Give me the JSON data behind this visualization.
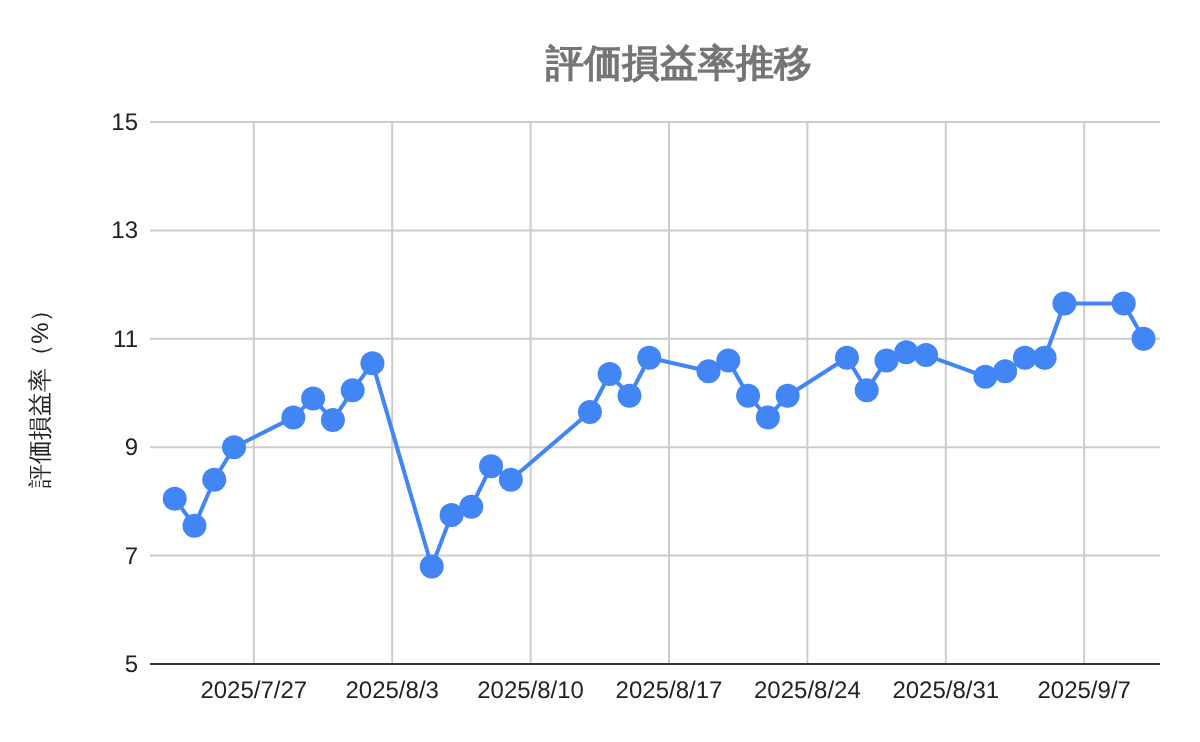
{
  "chart_data": {
    "type": "line",
    "title": "評価損益率推移",
    "ylabel": "評価損益率（%）",
    "x": [
      "2025-07-23",
      "2025-07-24",
      "2025-07-25",
      "2025-07-26",
      "2025-07-29",
      "2025-07-30",
      "2025-07-31",
      "2025-08-01",
      "2025-08-02",
      "2025-08-05",
      "2025-08-06",
      "2025-08-07",
      "2025-08-08",
      "2025-08-09",
      "2025-08-13",
      "2025-08-14",
      "2025-08-15",
      "2025-08-16",
      "2025-08-19",
      "2025-08-20",
      "2025-08-21",
      "2025-08-22",
      "2025-08-23",
      "2025-08-26",
      "2025-08-27",
      "2025-08-28",
      "2025-08-29",
      "2025-08-30",
      "2025-09-02",
      "2025-09-03",
      "2025-09-04",
      "2025-09-05",
      "2025-09-06",
      "2025-09-09",
      "2025-09-10"
    ],
    "series": [
      {
        "color": "#4285f4",
        "values": [
          8.05,
          7.55,
          8.4,
          9.0,
          9.55,
          9.9,
          9.5,
          10.05,
          10.55,
          6.8,
          7.75,
          7.9,
          8.65,
          8.4,
          9.65,
          10.35,
          9.95,
          10.65,
          10.4,
          10.6,
          9.95,
          9.55,
          9.95,
          10.65,
          10.05,
          10.6,
          10.75,
          10.7,
          10.3,
          10.4,
          10.65,
          10.65,
          11.65,
          11.65,
          11.0
        ]
      }
    ],
    "xlim": [
      "2025-07-21T18:00",
      "2025-09-10T20:00"
    ],
    "xticks": [
      {
        "value": "2025-07-27",
        "label": "2025/7/27"
      },
      {
        "value": "2025-08-03",
        "label": "2025/8/3"
      },
      {
        "value": "2025-08-10",
        "label": "2025/8/10"
      },
      {
        "value": "2025-08-17",
        "label": "2025/8/17"
      },
      {
        "value": "2025-08-24",
        "label": "2025/8/24"
      },
      {
        "value": "2025-08-31",
        "label": "2025/8/31"
      },
      {
        "value": "2025-09-07",
        "label": "2025/9/7"
      }
    ],
    "ylim": [
      5,
      15
    ],
    "yticks": [
      5,
      7,
      9,
      11,
      13,
      15
    ],
    "grid": true,
    "marker": "circle",
    "line_style": "solid"
  }
}
